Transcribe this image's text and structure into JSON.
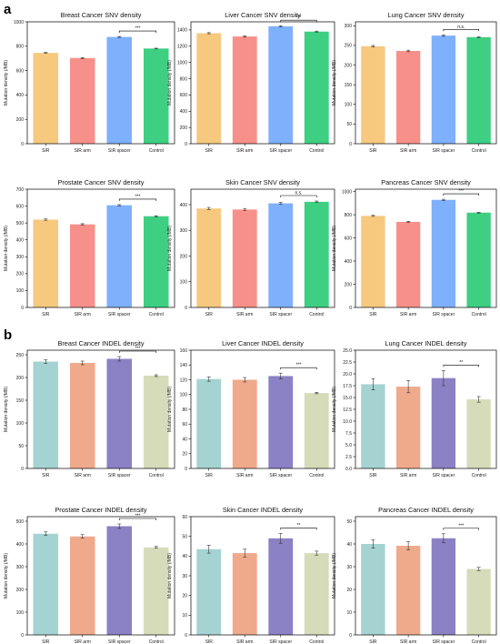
{
  "panel_labels": [
    "a",
    "b"
  ],
  "ylabel": "Mutation density (/MB)",
  "palettes": {
    "snv": [
      "#f6c97f",
      "#f7908a",
      "#7fb0fb",
      "#3ecf82"
    ],
    "indel": [
      "#a4d3d2",
      "#efaa8c",
      "#8a82c4",
      "#d6dcba"
    ]
  },
  "chart_data": [
    {
      "type": "bar",
      "title": "Breast Cancer SNV density",
      "ylabel": "Mutation density (/MB)",
      "categories": [
        "SIR",
        "SIR arm",
        "SIR spacer",
        "Control"
      ],
      "values": [
        745,
        703,
        876,
        781
      ],
      "errors": [
        4,
        4,
        4,
        3
      ],
      "ylim": [
        0,
        1000
      ],
      "yticks": [
        0,
        200,
        400,
        600,
        800,
        1000
      ],
      "palette": "snv",
      "significance": {
        "from": 2,
        "to": 3,
        "label": "***"
      }
    },
    {
      "type": "bar",
      "title": "Liver Cancer SNV density",
      "ylabel": "Mutation density (/MB)",
      "categories": [
        "SIR",
        "SIR arm",
        "SIR spacer",
        "Control"
      ],
      "values": [
        1360,
        1320,
        1445,
        1380
      ],
      "errors": [
        8,
        8,
        8,
        6
      ],
      "ylim": [
        0,
        1500
      ],
      "yticks": [
        0,
        200,
        400,
        600,
        800,
        1000,
        1200,
        1400
      ],
      "palette": "snv",
      "significance": {
        "from": 2,
        "to": 3,
        "label": "***"
      }
    },
    {
      "type": "bar",
      "title": "Lung Cancer SNV density",
      "ylabel": "Mutation density (/MB)",
      "categories": [
        "SIR",
        "SIR arm",
        "SIR spacer",
        "Control"
      ],
      "values": [
        248,
        236,
        275,
        271
      ],
      "errors": [
        2,
        2,
        2,
        1.5
      ],
      "ylim": [
        0,
        310
      ],
      "yticks": [
        0,
        50,
        100,
        150,
        200,
        250,
        300
      ],
      "palette": "snv",
      "significance": {
        "from": 2,
        "to": 3,
        "label": "n.s."
      }
    },
    {
      "type": "bar",
      "title": "Prostate Cancer SNV density",
      "ylabel": "Mutation density (/MB)",
      "categories": [
        "SIR",
        "SIR arm",
        "SIR spacer",
        "Control"
      ],
      "values": [
        520,
        492,
        605,
        540
      ],
      "errors": [
        4,
        4,
        4,
        3
      ],
      "ylim": [
        0,
        700
      ],
      "yticks": [
        0,
        100,
        200,
        300,
        400,
        500,
        600,
        700
      ],
      "palette": "snv",
      "significance": {
        "from": 2,
        "to": 3,
        "label": "***"
      }
    },
    {
      "type": "bar",
      "title": "Skin Cancer SNV density",
      "ylabel": "Mutation density (/MB)",
      "categories": [
        "SIR",
        "SIR arm",
        "SIR spacer",
        "Control"
      ],
      "values": [
        385,
        381,
        405,
        411
      ],
      "errors": [
        4,
        4,
        4,
        3
      ],
      "ylim": [
        0,
        460
      ],
      "yticks": [
        0,
        100,
        200,
        300,
        400
      ],
      "palette": "snv",
      "significance": {
        "from": 2,
        "to": 3,
        "label": "n.s."
      }
    },
    {
      "type": "bar",
      "title": "Pancreas Cancer SNV density",
      "ylabel": "Mutation density (/MB)",
      "categories": [
        "SIR",
        "SIR arm",
        "SIR spacer",
        "Control"
      ],
      "values": [
        790,
        738,
        928,
        818
      ],
      "errors": [
        5,
        5,
        5,
        4
      ],
      "ylim": [
        0,
        1020
      ],
      "yticks": [
        0,
        200,
        400,
        600,
        800,
        1000
      ],
      "palette": "snv",
      "significance": {
        "from": 2,
        "to": 3,
        "label": "***"
      }
    },
    {
      "type": "bar",
      "title": "Breast Cancer INDEL density",
      "ylabel": "Mutation density (/MB)",
      "categories": [
        "SIR",
        "SIR arm",
        "SIR spacer",
        "Control"
      ],
      "values": [
        235,
        232,
        241,
        204
      ],
      "errors": [
        4,
        4,
        5,
        2
      ],
      "ylim": [
        0,
        260
      ],
      "yticks": [
        0,
        50,
        100,
        150,
        200,
        250
      ],
      "palette": "indel",
      "significance": {
        "from": 2,
        "to": 3,
        "label": "***"
      }
    },
    {
      "type": "bar",
      "title": "Liver Cancer INDEL density",
      "ylabel": "Mutation density (/MB)",
      "categories": [
        "SIR",
        "SIR arm",
        "SIR spacer",
        "Control"
      ],
      "values": [
        121,
        120,
        125,
        102
      ],
      "errors": [
        3,
        3,
        4,
        1
      ],
      "ylim": [
        0,
        160
      ],
      "yticks": [
        0,
        20,
        40,
        60,
        80,
        100,
        120,
        140,
        160
      ],
      "palette": "indel",
      "significance": {
        "from": 2,
        "to": 3,
        "label": "***"
      }
    },
    {
      "type": "bar",
      "title": "Lung Cancer INDEL density",
      "ylabel": "Mutation density (/MB)",
      "categories": [
        "SIR",
        "SIR arm",
        "SIR spacer",
        "Control"
      ],
      "values": [
        17.8,
        17.3,
        19.1,
        14.6
      ],
      "errors": [
        1.2,
        1.3,
        1.6,
        0.6
      ],
      "ylim": [
        0,
        25
      ],
      "yticks": [
        0,
        2.5,
        5.0,
        7.5,
        10.0,
        12.5,
        15.0,
        17.5,
        20.0,
        22.5,
        25.0
      ],
      "palette": "indel",
      "significance": {
        "from": 2,
        "to": 3,
        "label": "**"
      }
    },
    {
      "type": "bar",
      "title": "Prostate Cancer INDEL density",
      "ylabel": "Mutation density (/MB)",
      "categories": [
        "SIR",
        "SIR arm",
        "SIR spacer",
        "Control"
      ],
      "values": [
        445,
        433,
        478,
        385
      ],
      "errors": [
        8,
        8,
        10,
        4
      ],
      "ylim": [
        0,
        520
      ],
      "yticks": [
        0,
        100,
        200,
        300,
        400,
        500
      ],
      "palette": "indel",
      "significance": {
        "from": 2,
        "to": 3,
        "label": "***"
      }
    },
    {
      "type": "bar",
      "title": "Skin Cancer INDEL density",
      "ylabel": "Mutation density (/MB)",
      "categories": [
        "SIR",
        "SIR arm",
        "SIR spacer",
        "Control"
      ],
      "values": [
        43.5,
        41.5,
        49,
        41.5
      ],
      "errors": [
        2,
        2,
        2.5,
        1
      ],
      "ylim": [
        0,
        60
      ],
      "yticks": [
        0,
        10,
        20,
        30,
        40,
        50,
        60
      ],
      "palette": "indel",
      "significance": {
        "from": 2,
        "to": 3,
        "label": "**"
      }
    },
    {
      "type": "bar",
      "title": "Pancreas Cancer INDEL density",
      "ylabel": "Mutation density (/MB)",
      "categories": [
        "SIR",
        "SIR arm",
        "SIR spacer",
        "Control"
      ],
      "values": [
        40,
        39.2,
        42.5,
        29
      ],
      "errors": [
        1.8,
        1.8,
        2,
        0.7
      ],
      "ylim": [
        0,
        52
      ],
      "yticks": [
        0,
        10,
        20,
        30,
        40,
        50
      ],
      "palette": "indel",
      "significance": {
        "from": 2,
        "to": 3,
        "label": "***"
      }
    }
  ]
}
